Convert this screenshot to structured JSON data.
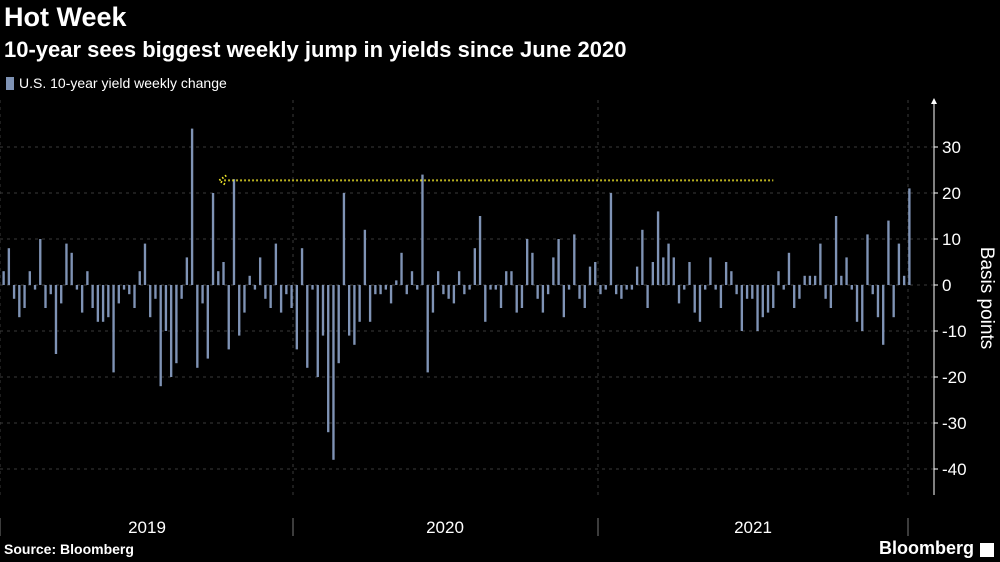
{
  "title": "Hot Week",
  "subtitle": "10-year sees biggest weekly jump in yields since June 2020",
  "source": "Source: Bloomberg",
  "brand": "Bloomberg",
  "colors": {
    "bar": "#7f93b5",
    "annotation": "#f2e829",
    "grid": "#3a3a3a",
    "background": "#000000"
  },
  "chart_data": {
    "type": "bar",
    "title": "Hot Week",
    "ylabel": "Basis points",
    "ylim": [
      -45,
      40
    ],
    "yticks": [
      30,
      20,
      10,
      0,
      -10,
      -20,
      -30,
      -40
    ],
    "year_labels": [
      "2019",
      "2020",
      "2021"
    ],
    "legend": "U.S. 10-year yield weekly change",
    "annotation": {
      "type": "dotted-arrow",
      "y_value": 21,
      "from_bar": 41,
      "to_bar": 147
    },
    "series": [
      {
        "name": "U.S. 10-year yield weekly change",
        "values": [
          3,
          8,
          -3,
          -7,
          -5,
          3,
          -1,
          10,
          -5,
          -2,
          -15,
          -4,
          9,
          7,
          -1,
          -6,
          3,
          -5,
          -8,
          -8,
          -7,
          -19,
          -4,
          -1,
          -2,
          -5,
          3,
          9,
          -7,
          -3,
          -22,
          -10,
          -20,
          -17,
          -3,
          6,
          34,
          -18,
          -4,
          -16,
          20,
          3,
          5,
          -14,
          23,
          -11,
          -6,
          2,
          -1,
          6,
          -3,
          -5,
          9,
          -6,
          -2,
          -5,
          -14,
          8,
          -18,
          -1,
          -20,
          -11,
          -32,
          -38,
          -17,
          20,
          -11,
          -13,
          -8,
          12,
          -8,
          -2,
          -2,
          -1,
          -4,
          1,
          7,
          -2,
          3,
          -1,
          24,
          -19,
          -6,
          3,
          -2,
          -3,
          -4,
          3,
          -2,
          -1,
          8,
          15,
          -8,
          -1,
          -1,
          -5,
          3,
          3,
          -6,
          -5,
          10,
          7,
          -3,
          -6,
          -2,
          6,
          10,
          -7,
          -1,
          11,
          -3,
          -5,
          4,
          5,
          -2,
          -1,
          20,
          -2,
          -3,
          -1,
          -1,
          4,
          12,
          -5,
          5,
          16,
          6,
          9,
          6,
          -4,
          -1,
          5,
          -6,
          -8,
          -1,
          6,
          -1,
          -5,
          5,
          3,
          -2,
          -10,
          -3,
          -3,
          -10,
          -7,
          -6,
          -5,
          3,
          -1,
          7,
          -5,
          -3,
          2,
          2,
          2,
          9,
          -3,
          -5,
          15,
          2,
          6,
          -1,
          -8,
          -10,
          11,
          -2,
          -7,
          -13,
          14,
          -7,
          9,
          2,
          21
        ]
      }
    ]
  }
}
